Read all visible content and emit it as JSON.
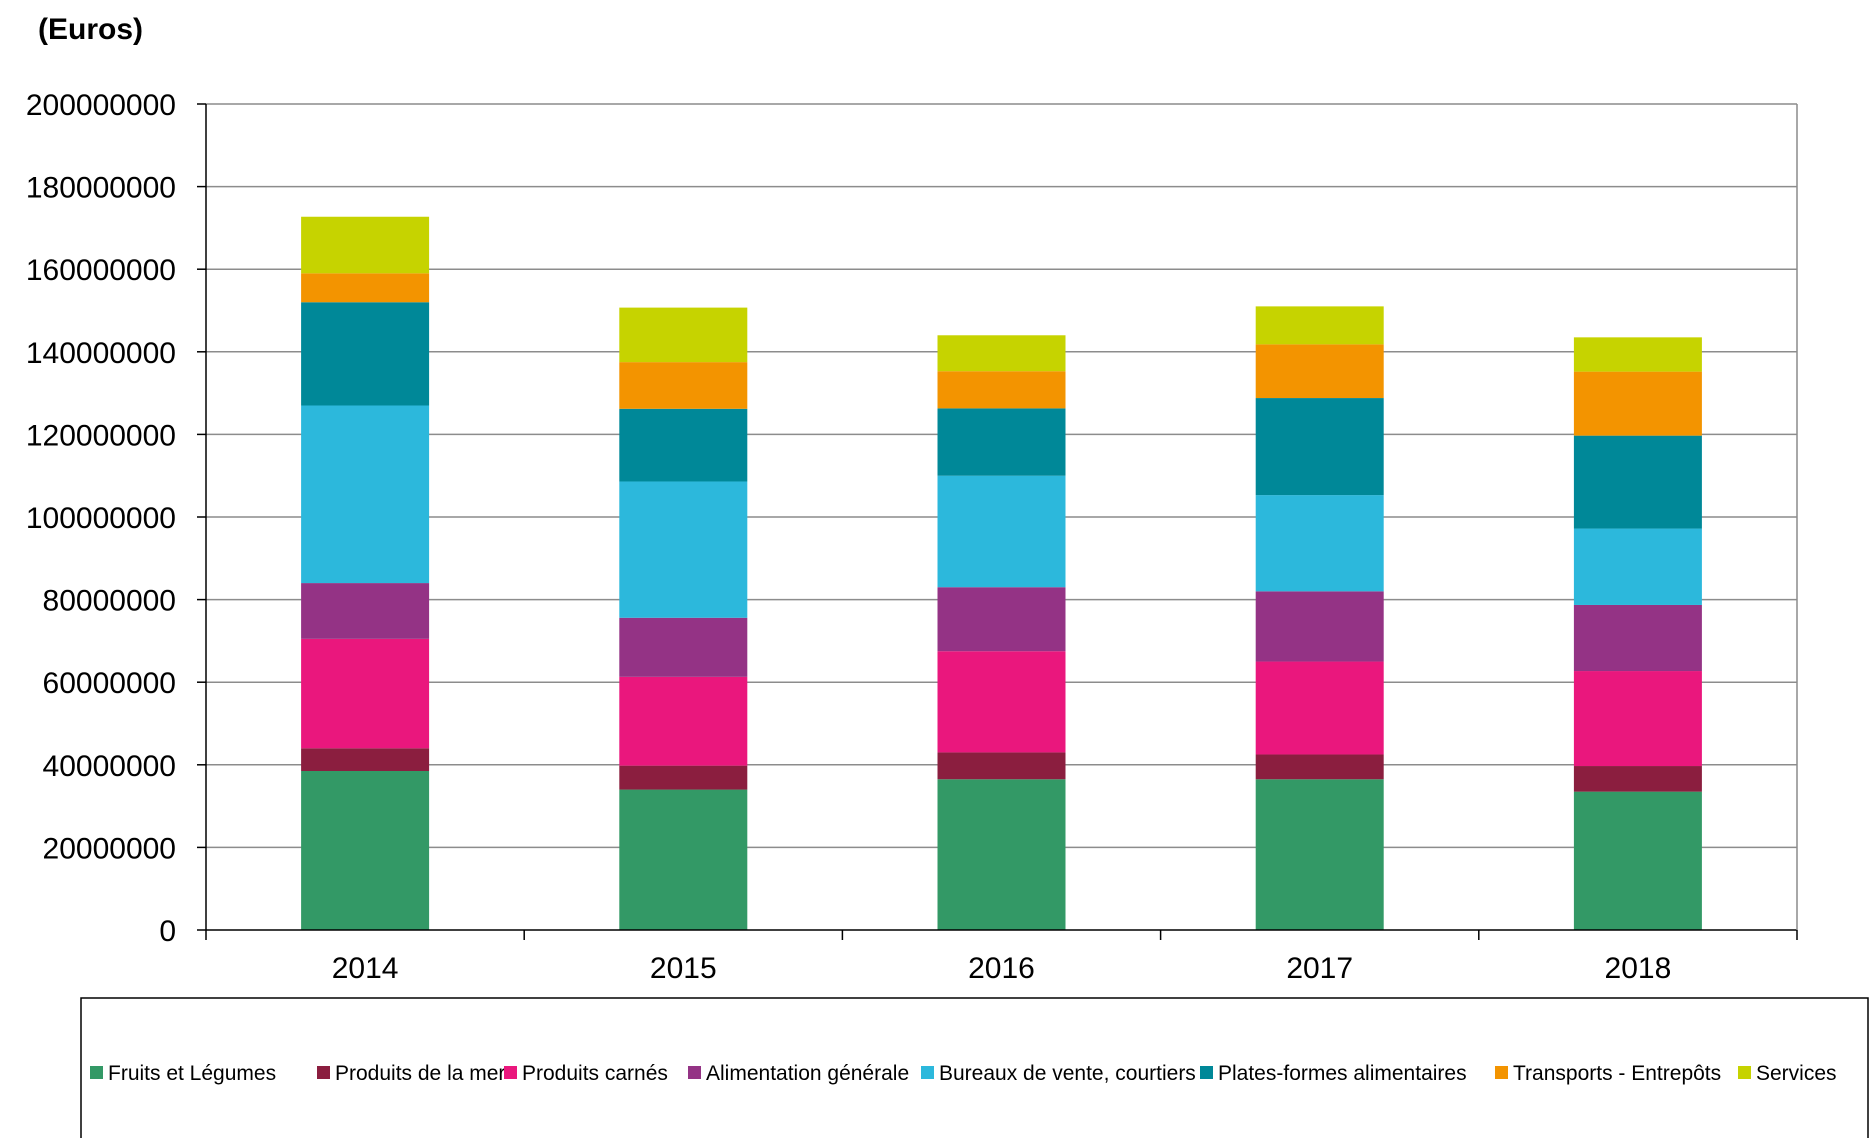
{
  "chart_data": {
    "type": "bar",
    "stacked": true,
    "unit_label": "(Euros)",
    "title": "",
    "xlabel": "",
    "ylabel": "",
    "ylim": [
      0,
      200000000
    ],
    "yticks": [
      0,
      20000000,
      40000000,
      60000000,
      80000000,
      100000000,
      120000000,
      140000000,
      160000000,
      180000000,
      200000000
    ],
    "ytick_labels": [
      "0",
      "20000000",
      "40000000",
      "60000000",
      "80000000",
      "100000000",
      "120000000",
      "140000000",
      "160000000",
      "180000000",
      "200000000"
    ],
    "grid": true,
    "legend_position": "bottom",
    "categories": [
      "2014",
      "2015",
      "2016",
      "2017",
      "2018"
    ],
    "series": [
      {
        "name": "Fruits et Légumes",
        "color": "#339966",
        "values": [
          38500000,
          34000000,
          36500000,
          36500000,
          33500000
        ]
      },
      {
        "name": "Produits de la mer",
        "color": "#8b1e3f",
        "values": [
          5500000,
          5800000,
          6500000,
          6000000,
          6200000
        ]
      },
      {
        "name": "Produits carnés",
        "color": "#ea177d",
        "values": [
          26500000,
          21500000,
          24500000,
          22500000,
          23000000
        ]
      },
      {
        "name": "Alimentation générale",
        "color": "#943385",
        "values": [
          13500000,
          14300000,
          15500000,
          17000000,
          16000000
        ]
      },
      {
        "name": "Bureaux de vente, courtiers",
        "color": "#2cb8dc",
        "values": [
          43000000,
          33000000,
          27000000,
          23300000,
          18500000
        ]
      },
      {
        "name": "Plates-formes alimentaires",
        "color": "#008898",
        "values": [
          25000000,
          17600000,
          16300000,
          23500000,
          22500000
        ]
      },
      {
        "name": "Transports - Entrepôts",
        "color": "#f39400",
        "values": [
          7000000,
          11300000,
          9000000,
          13000000,
          15500000
        ]
      },
      {
        "name": "Services",
        "color": "#c6d300",
        "values": [
          13700000,
          13200000,
          8700000,
          9200000,
          8300000
        ]
      }
    ]
  }
}
